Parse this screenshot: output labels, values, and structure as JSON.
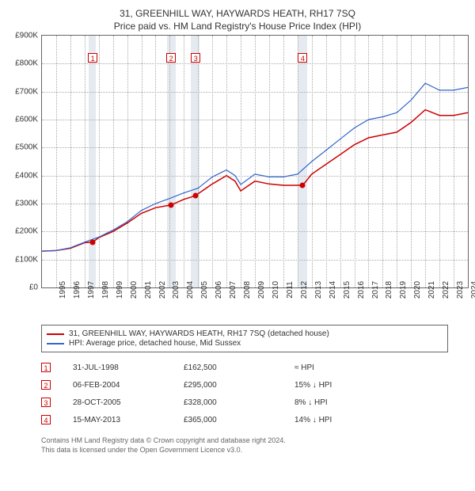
{
  "title_line1": "31, GREENHILL WAY, HAYWARDS HEATH, RH17 7SQ",
  "title_line2": "Price paid vs. HM Land Registry's House Price Index (HPI)",
  "chart": {
    "type": "line",
    "x_min": 1995,
    "x_max": 2025,
    "x_ticks": [
      1995,
      1996,
      1997,
      1998,
      1999,
      2000,
      2001,
      2002,
      2003,
      2004,
      2005,
      2006,
      2007,
      2008,
      2009,
      2010,
      2011,
      2012,
      2013,
      2014,
      2015,
      2016,
      2017,
      2018,
      2019,
      2020,
      2021,
      2022,
      2023,
      2024,
      2025
    ],
    "y_min": 0,
    "y_max": 900,
    "y_ticks": [
      0,
      100,
      200,
      300,
      400,
      500,
      600,
      700,
      800,
      900
    ],
    "y_prefix": "£",
    "y_suffix": "K",
    "background_color": "#ffffff",
    "band_color": "#e5eaf0",
    "bands": [
      {
        "from": 1998.3,
        "to": 1998.8
      },
      {
        "from": 2003.8,
        "to": 2004.4
      },
      {
        "from": 2005.5,
        "to": 2006.1
      },
      {
        "from": 2013.0,
        "to": 2013.7
      }
    ],
    "grid_color": "#aaaaaa",
    "series": [
      {
        "name": "31, GREENHILL WAY, HAYWARDS HEATH, RH17 7SQ (detached house)",
        "color": "#cc0000",
        "width": 1.5,
        "data": [
          [
            1995,
            130
          ],
          [
            1996,
            132
          ],
          [
            1997,
            140
          ],
          [
            1998,
            160
          ],
          [
            1998.58,
            162.5
          ],
          [
            1999,
            178
          ],
          [
            2000,
            200
          ],
          [
            2001,
            230
          ],
          [
            2002,
            265
          ],
          [
            2003,
            285
          ],
          [
            2004.1,
            295
          ],
          [
            2005,
            315
          ],
          [
            2005.83,
            328
          ],
          [
            2006,
            335
          ],
          [
            2007,
            370
          ],
          [
            2008,
            400
          ],
          [
            2008.6,
            380
          ],
          [
            2009,
            345
          ],
          [
            2010,
            380
          ],
          [
            2011,
            370
          ],
          [
            2012,
            365
          ],
          [
            2013.37,
            365
          ],
          [
            2014,
            405
          ],
          [
            2015,
            440
          ],
          [
            2016,
            475
          ],
          [
            2017,
            510
          ],
          [
            2018,
            535
          ],
          [
            2019,
            545
          ],
          [
            2020,
            555
          ],
          [
            2021,
            590
          ],
          [
            2022,
            635
          ],
          [
            2023,
            615
          ],
          [
            2024,
            615
          ],
          [
            2025,
            625
          ]
        ]
      },
      {
        "name": "HPI: Average price, detached house, Mid Sussex",
        "color": "#3366cc",
        "width": 1.2,
        "data": [
          [
            1995,
            130
          ],
          [
            1996,
            132
          ],
          [
            1997,
            142
          ],
          [
            1998,
            162
          ],
          [
            1999,
            180
          ],
          [
            2000,
            205
          ],
          [
            2001,
            235
          ],
          [
            2002,
            275
          ],
          [
            2003,
            300
          ],
          [
            2004,
            318
          ],
          [
            2005,
            338
          ],
          [
            2006,
            355
          ],
          [
            2007,
            395
          ],
          [
            2008,
            420
          ],
          [
            2008.6,
            400
          ],
          [
            2009,
            368
          ],
          [
            2010,
            405
          ],
          [
            2011,
            395
          ],
          [
            2012,
            395
          ],
          [
            2013,
            405
          ],
          [
            2014,
            450
          ],
          [
            2015,
            490
          ],
          [
            2016,
            530
          ],
          [
            2017,
            570
          ],
          [
            2018,
            600
          ],
          [
            2019,
            610
          ],
          [
            2020,
            625
          ],
          [
            2021,
            670
          ],
          [
            2022,
            730
          ],
          [
            2023,
            705
          ],
          [
            2024,
            705
          ],
          [
            2025,
            715
          ]
        ]
      }
    ],
    "sale_points": [
      {
        "year": 1998.58,
        "value": 162.5
      },
      {
        "year": 2004.1,
        "value": 295
      },
      {
        "year": 2005.83,
        "value": 328
      },
      {
        "year": 2013.37,
        "value": 365
      }
    ],
    "markers": [
      {
        "n": "1",
        "year": 1998.58,
        "y_top": 820
      },
      {
        "n": "2",
        "year": 2004.1,
        "y_top": 820
      },
      {
        "n": "3",
        "year": 2005.83,
        "y_top": 820
      },
      {
        "n": "4",
        "year": 2013.37,
        "y_top": 820
      }
    ]
  },
  "legend": [
    {
      "color": "#cc0000",
      "label": "31, GREENHILL WAY, HAYWARDS HEATH, RH17 7SQ (detached house)"
    },
    {
      "color": "#3366cc",
      "label": "HPI: Average price, detached house, Mid Sussex"
    }
  ],
  "table": [
    {
      "n": "1",
      "date": "31-JUL-1998",
      "price": "£162,500",
      "pct": "≈ HPI"
    },
    {
      "n": "2",
      "date": "06-FEB-2004",
      "price": "£295,000",
      "pct": "15% ↓ HPI"
    },
    {
      "n": "3",
      "date": "28-OCT-2005",
      "price": "£328,000",
      "pct": "8% ↓ HPI"
    },
    {
      "n": "4",
      "date": "15-MAY-2013",
      "price": "£365,000",
      "pct": "14% ↓ HPI"
    }
  ],
  "footer_line1": "Contains HM Land Registry data © Crown copyright and database right 2024.",
  "footer_line2": "This data is licensed under the Open Government Licence v3.0."
}
